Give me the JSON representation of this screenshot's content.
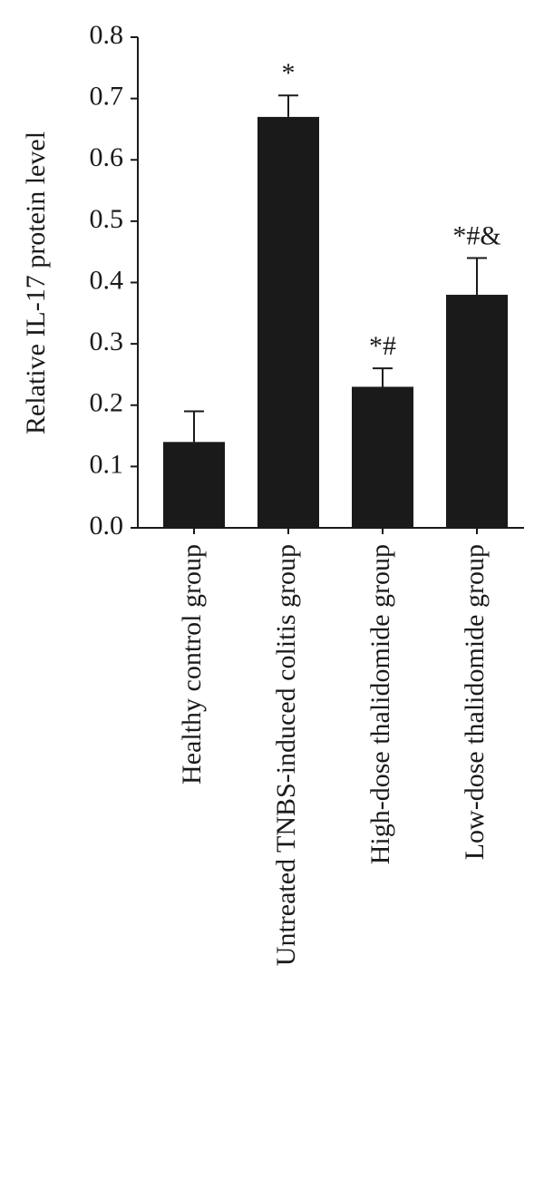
{
  "chart_data": {
    "type": "bar",
    "y_label": "Relative IL-17 protein level",
    "categories": [
      "Healthy control group",
      "Untreated TNBS-induced colitis group",
      "High-dose thalidomide group",
      "Low-dose thalidomide group"
    ],
    "values": [
      0.14,
      0.67,
      0.23,
      0.38
    ],
    "errors": [
      0.05,
      0.035,
      0.03,
      0.06
    ],
    "annotations": [
      null,
      "*",
      "*#",
      "*#&"
    ],
    "color": "#1a1a1a",
    "ylim": [
      0,
      0.8
    ],
    "yticks": [
      {
        "value": 0,
        "label": "0.0"
      },
      0.1,
      0.2,
      0.3,
      0.4,
      0.5,
      0.6,
      0.7,
      0.8
    ]
  }
}
